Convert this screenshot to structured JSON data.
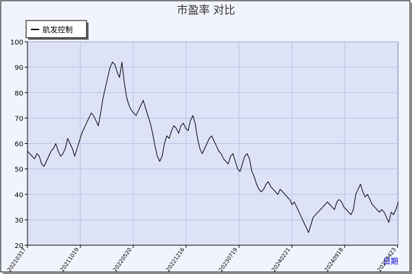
{
  "chart_data": {
    "type": "line",
    "title": "市盈率  对比",
    "xlabel": "日期",
    "ylabel": "",
    "ylim": [
      20,
      100
    ],
    "yticks": [
      20,
      30,
      40,
      50,
      60,
      70,
      80,
      90,
      100
    ],
    "xtick_labels": [
      "20210317",
      "20211019",
      "20220520",
      "20221216",
      "20230719",
      "20240221",
      "20240918",
      "20250423"
    ],
    "grid": true,
    "legend_position": "top-left",
    "colors": {
      "background": "#ffffff",
      "plot_area": "#dde2f7",
      "grid": "#b8c2e6",
      "line": "#000000",
      "frame": "#000000"
    },
    "series": [
      {
        "name": "航发控制",
        "values": [
          57,
          56,
          55,
          54,
          56,
          55,
          52,
          51,
          53,
          55,
          57,
          58,
          60,
          57,
          55,
          56,
          58,
          62,
          60,
          58,
          55,
          58,
          61,
          64,
          66,
          68,
          70,
          72,
          71,
          69,
          67,
          72,
          78,
          82,
          86,
          90,
          92,
          91,
          88,
          86,
          92,
          84,
          78,
          75,
          73,
          72,
          71,
          73,
          75,
          77,
          74,
          71,
          68,
          64,
          59,
          55,
          53,
          55,
          60,
          63,
          62,
          65,
          67,
          66,
          64,
          67,
          68,
          66,
          65,
          69,
          71,
          68,
          62,
          58,
          56,
          58,
          60,
          62,
          63,
          61,
          59,
          57,
          56,
          54,
          53,
          52,
          55,
          56,
          53,
          50,
          49,
          52,
          55,
          56,
          54,
          49,
          47,
          44,
          42,
          41,
          42,
          44,
          45,
          43,
          42,
          41,
          40,
          42,
          41,
          40,
          39,
          38,
          36,
          37,
          35,
          33,
          31,
          29,
          27,
          25,
          28,
          31,
          32,
          33,
          34,
          35,
          36,
          37,
          36,
          35,
          34,
          37,
          38,
          37,
          35,
          34,
          33,
          32,
          34,
          40,
          42,
          44,
          41,
          39,
          40,
          38,
          36,
          35,
          34,
          33,
          34,
          33,
          31,
          29,
          33,
          32,
          34,
          37
        ]
      }
    ]
  }
}
